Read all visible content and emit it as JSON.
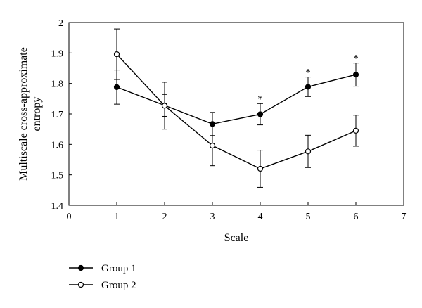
{
  "chart_data": {
    "type": "line",
    "xlabel": "Scale",
    "ylabel_lines": [
      "Multiscale cross-approximate",
      "entropy"
    ],
    "xlim": [
      0,
      7
    ],
    "ylim": [
      1.4,
      2.0
    ],
    "xticks": [
      0,
      1,
      2,
      3,
      4,
      5,
      6,
      7
    ],
    "yticks": [
      1.4,
      1.5,
      1.6,
      1.7,
      1.8,
      1.9,
      2.0
    ],
    "ytick_labels": [
      "1.4",
      "1.5",
      "1.6",
      "1.7",
      "1.8",
      "1.9",
      "2"
    ],
    "grid": false,
    "legend_placement": "bottom-left",
    "series": [
      {
        "name": "Group 1",
        "marker": "filled-circle",
        "x": [
          1,
          2,
          3,
          4,
          5,
          6
        ],
        "y": [
          1.788,
          1.728,
          1.667,
          1.699,
          1.789,
          1.829
        ],
        "err": [
          0.056,
          0.036,
          0.038,
          0.035,
          0.032,
          0.038
        ]
      },
      {
        "name": "Group 2",
        "marker": "open-circle",
        "x": [
          1,
          2,
          3,
          4,
          5,
          6
        ],
        "y": [
          1.896,
          1.727,
          1.596,
          1.52,
          1.577,
          1.645
        ],
        "err": [
          0.083,
          0.077,
          0.066,
          0.061,
          0.053,
          0.051
        ]
      }
    ],
    "annotations": [
      {
        "text": "*",
        "x": 4
      },
      {
        "text": "*",
        "x": 5
      },
      {
        "text": "*",
        "x": 6
      }
    ]
  }
}
